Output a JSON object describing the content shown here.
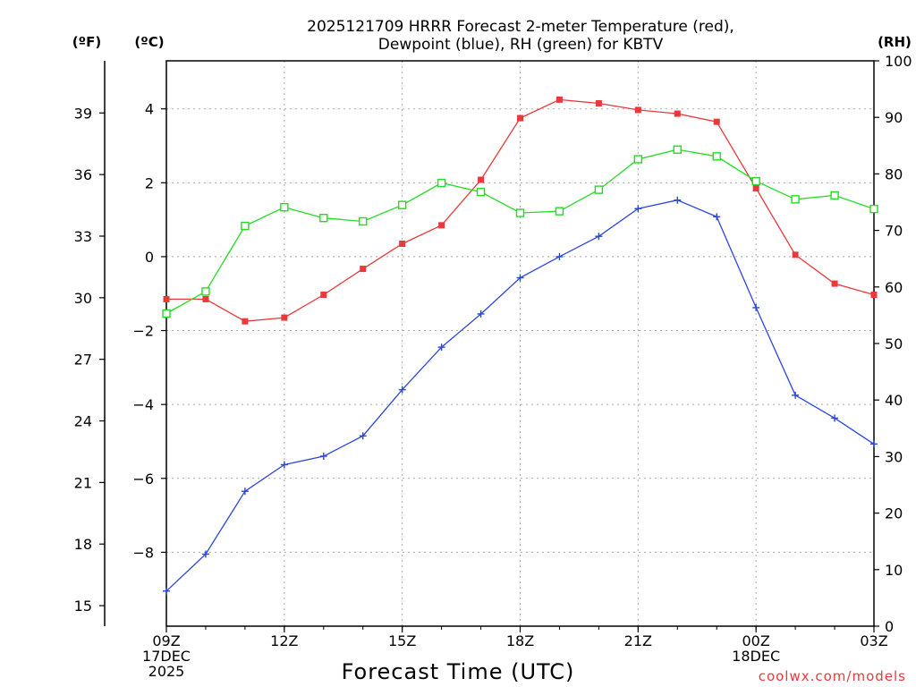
{
  "chart_data": {
    "type": "line",
    "title_line1": "2025121709 HRRR Forecast 2-meter Temperature (red),",
    "title_line2": "Dewpoint (blue), RH (green) for KBTV",
    "xlabel": "Forecast Time (UTC)",
    "credit": "coolwx.com/models",
    "y_f_unit": "(ºF)",
    "y_c_unit": "(ºC)",
    "y_rh_unit": "(RH)",
    "x_hours": [
      9,
      10,
      11,
      12,
      13,
      14,
      15,
      16,
      17,
      18,
      19,
      20,
      21,
      22,
      23,
      24,
      25,
      26,
      27
    ],
    "x_range": [
      9,
      27
    ],
    "ylim_c": [
      -10,
      5.3
    ],
    "ylim_rh": [
      0,
      100
    ],
    "x_ticks": [
      {
        "hour": 9,
        "lines": [
          "09Z",
          "17DEC",
          "2025"
        ]
      },
      {
        "hour": 12,
        "lines": [
          "12Z"
        ]
      },
      {
        "hour": 15,
        "lines": [
          "15Z"
        ]
      },
      {
        "hour": 18,
        "lines": [
          "18Z"
        ]
      },
      {
        "hour": 21,
        "lines": [
          "21Z"
        ]
      },
      {
        "hour": 24,
        "lines": [
          "00Z",
          "18DEC"
        ]
      },
      {
        "hour": 27,
        "lines": [
          "03Z"
        ]
      }
    ],
    "y_ticks_c": [
      {
        "value": 4,
        "label": "4"
      },
      {
        "value": 2,
        "label": "2"
      },
      {
        "value": 0,
        "label": "0"
      },
      {
        "value": -2,
        "label": "−2"
      },
      {
        "value": -4,
        "label": "−4"
      },
      {
        "value": -6,
        "label": "−6"
      },
      {
        "value": -8,
        "label": "−8"
      }
    ],
    "y_ticks_f": [
      15,
      18,
      21,
      24,
      27,
      30,
      33,
      36,
      39
    ],
    "y_ticks_rh": [
      0,
      10,
      20,
      30,
      40,
      50,
      60,
      70,
      80,
      90,
      100
    ],
    "series": [
      {
        "name": "Temperature",
        "unit": "C",
        "color": "#e83a3a",
        "marker": "filled-square",
        "values": [
          -1.15,
          -1.15,
          -1.75,
          -1.65,
          -1.03,
          -0.33,
          0.35,
          0.85,
          2.08,
          3.75,
          4.25,
          4.15,
          3.97,
          3.87,
          3.65,
          1.85,
          0.05,
          -0.73,
          -1.03
        ]
      },
      {
        "name": "Dewpoint",
        "unit": "C",
        "color": "#2b45e0",
        "marker": "plus",
        "values": [
          -9.05,
          -8.05,
          -6.35,
          -5.63,
          -5.4,
          -4.85,
          -3.6,
          -2.45,
          -1.55,
          -0.57,
          0.0,
          0.55,
          1.3,
          1.53,
          1.08,
          -1.38,
          -3.75,
          -4.37,
          -5.07
        ]
      },
      {
        "name": "RH",
        "unit": "%",
        "color": "#22dd22",
        "marker": "open-square",
        "values": [
          55.3,
          59.2,
          70.8,
          74.1,
          72.2,
          71.6,
          74.5,
          78.4,
          76.8,
          73.1,
          73.4,
          77.2,
          82.6,
          84.3,
          83.1,
          78.7,
          75.5,
          76.2,
          73.8
        ]
      }
    ]
  }
}
